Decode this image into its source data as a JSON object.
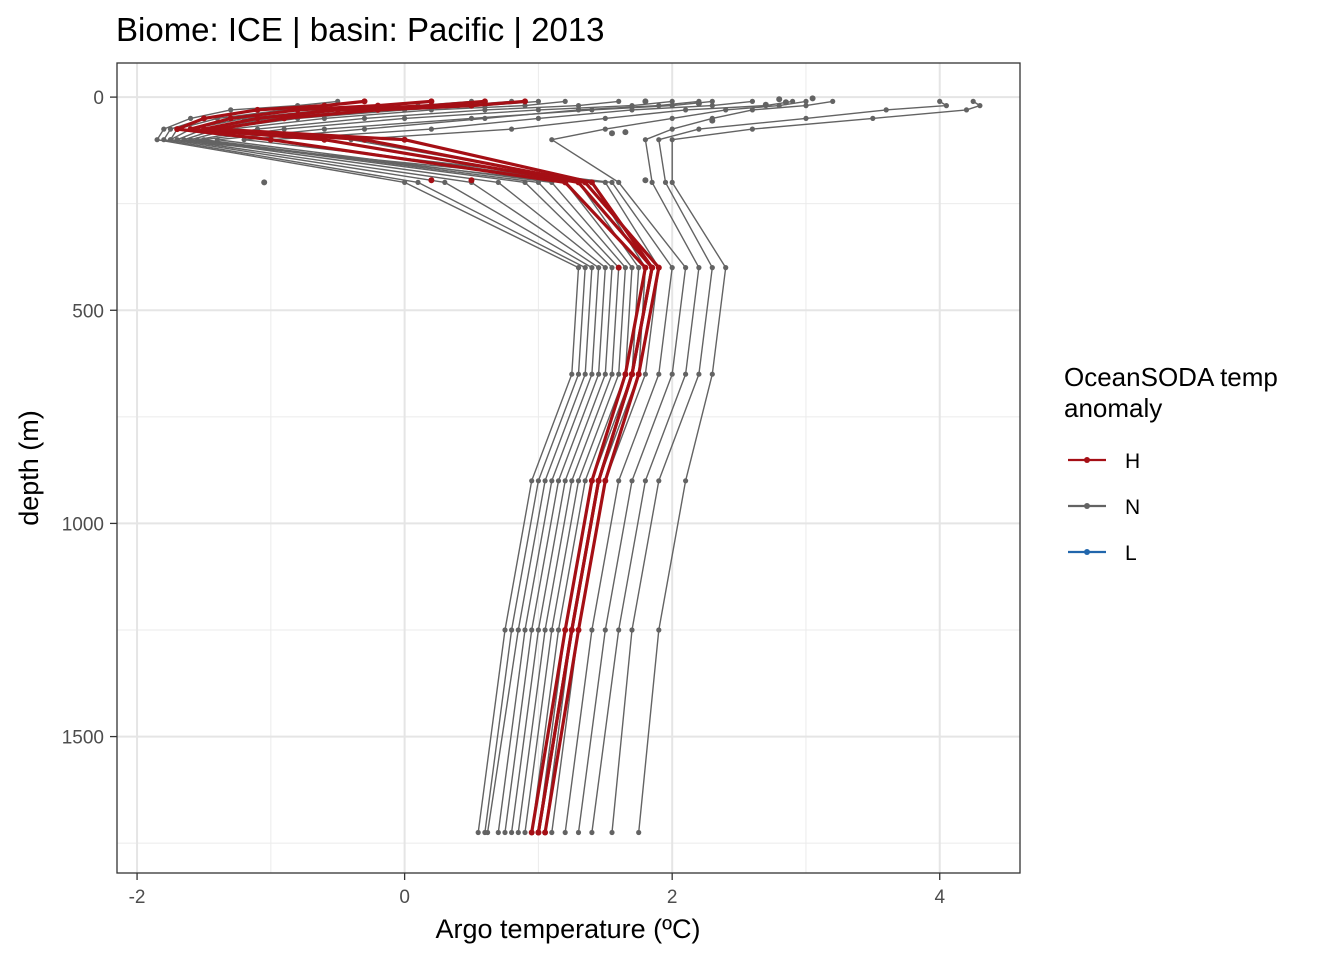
{
  "chart_data": {
    "type": "line",
    "title": "Biome: ICE | basin: Pacific  |  2013",
    "xlabel": "Argo temperature (ºC)",
    "ylabel": "depth (m)",
    "xlim": [
      -2.15,
      4.6
    ],
    "ylim": [
      -80,
      1820
    ],
    "y_reversed": true,
    "grid": true,
    "legend_position": "right",
    "x_ticks": [
      {
        "value": -2,
        "label": "-2"
      },
      {
        "value": 0,
        "label": "0"
      },
      {
        "value": 2,
        "label": "2"
      },
      {
        "value": 4,
        "label": "4"
      }
    ],
    "y_ticks": [
      {
        "value": 0,
        "label": "0"
      },
      {
        "value": 500,
        "label": "500"
      },
      {
        "value": 1000,
        "label": "1000"
      },
      {
        "value": 1500,
        "label": "1500"
      }
    ],
    "legend": {
      "title": "OceanSODA temp anomaly",
      "title_lines": [
        "OceanSODA temp",
        "anomaly"
      ],
      "entries": [
        {
          "label": "H",
          "color": "#A50F15"
        },
        {
          "label": "N",
          "color": "#636363"
        },
        {
          "label": "L",
          "color": "#2166AC"
        }
      ]
    },
    "depths": [
      10,
      20,
      30,
      50,
      75,
      100,
      200,
      400,
      650,
      900,
      1250,
      1725
    ],
    "series": [
      {
        "group": "N",
        "values": [
          -0.5,
          -0.8,
          -1.3,
          -1.6,
          -1.8,
          -1.85,
          0.0,
          1.3,
          1.25,
          0.95,
          0.75,
          0.55
        ]
      },
      {
        "group": "N",
        "values": [
          -0.3,
          -0.6,
          -1.1,
          -1.5,
          -1.75,
          -1.8,
          0.1,
          1.35,
          1.3,
          1.0,
          0.8,
          0.6
        ]
      },
      {
        "group": "N",
        "values": [
          0.5,
          0.1,
          -0.6,
          -1.2,
          -1.6,
          -1.75,
          0.3,
          1.4,
          1.35,
          1.05,
          0.85,
          0.62
        ]
      },
      {
        "group": "N",
        "values": [
          0.8,
          0.4,
          -0.3,
          -1.0,
          -1.5,
          -1.7,
          0.5,
          1.45,
          1.4,
          1.1,
          0.9,
          0.7
        ]
      },
      {
        "group": "N",
        "values": [
          1.2,
          0.9,
          0.2,
          -0.6,
          -1.3,
          -1.6,
          0.7,
          1.5,
          1.45,
          1.15,
          0.95,
          0.75
        ]
      },
      {
        "group": "N",
        "values": [
          1.6,
          1.3,
          0.6,
          -0.3,
          -1.1,
          -1.55,
          0.9,
          1.55,
          1.5,
          1.2,
          1.0,
          0.8
        ]
      },
      {
        "group": "N",
        "values": [
          2.0,
          1.7,
          1.0,
          0.0,
          -0.9,
          -1.5,
          1.0,
          1.6,
          1.55,
          1.25,
          1.05,
          0.85
        ]
      },
      {
        "group": "N",
        "values": [
          2.3,
          2.0,
          1.4,
          0.5,
          -0.6,
          -1.4,
          1.1,
          1.65,
          1.6,
          1.3,
          1.1,
          0.9
        ]
      },
      {
        "group": "N",
        "values": [
          1.0,
          0.6,
          0.0,
          -0.8,
          -1.4,
          -1.65,
          1.2,
          1.7,
          1.65,
          1.35,
          1.15,
          0.95
        ]
      },
      {
        "group": "N",
        "values": [
          2.6,
          2.3,
          1.7,
          1.0,
          0.2,
          -1.0,
          1.3,
          1.75,
          1.7,
          1.4,
          1.2,
          1.0
        ]
      },
      {
        "group": "N",
        "values": [
          2.9,
          2.7,
          2.1,
          1.5,
          0.8,
          -0.4,
          1.4,
          1.8,
          1.75,
          1.45,
          1.25,
          1.05
        ]
      },
      {
        "group": "N",
        "values": [
          0.2,
          -0.2,
          -0.9,
          -1.4,
          -1.7,
          -1.75,
          1.5,
          1.9,
          1.8,
          1.5,
          1.3,
          1.1
        ]
      },
      {
        "group": "N",
        "values": [
          2.2,
          1.9,
          1.3,
          0.6,
          -0.3,
          -1.2,
          1.55,
          2.0,
          1.9,
          1.6,
          1.4,
          1.2
        ]
      },
      {
        "group": "N",
        "values": [
          3.0,
          2.8,
          2.4,
          2.0,
          1.5,
          1.1,
          1.6,
          2.1,
          2.0,
          1.7,
          1.5,
          1.3
        ]
      },
      {
        "group": "N",
        "values": [
          3.2,
          3.0,
          2.6,
          2.3,
          2.0,
          1.8,
          1.85,
          2.2,
          2.1,
          1.8,
          1.6,
          1.4
        ]
      },
      {
        "group": "N",
        "values": [
          4.0,
          4.05,
          3.6,
          3.0,
          2.2,
          1.9,
          1.95,
          2.3,
          2.2,
          1.9,
          1.7,
          1.55
        ]
      },
      {
        "group": "N",
        "values": [
          4.25,
          4.3,
          4.2,
          3.5,
          2.6,
          2.0,
          2.0,
          2.4,
          2.3,
          2.1,
          1.9,
          1.75
        ]
      },
      {
        "group": "H",
        "values": [
          -0.3,
          -0.6,
          -1.1,
          -1.5,
          -1.7,
          -1.0,
          1.2,
          1.8,
          1.65,
          1.4,
          1.2,
          0.95
        ]
      },
      {
        "group": "H",
        "values": [
          0.2,
          -0.2,
          -0.8,
          -1.3,
          -1.6,
          -0.6,
          1.3,
          1.85,
          1.7,
          1.45,
          1.25,
          1.0
        ]
      },
      {
        "group": "H",
        "values": [
          0.6,
          0.2,
          -0.5,
          -1.1,
          -1.5,
          -0.3,
          1.35,
          1.9,
          1.75,
          1.5,
          1.3,
          1.05
        ]
      },
      {
        "group": "H",
        "values": [
          0.9,
          0.5,
          -0.2,
          -0.9,
          -1.4,
          0.0,
          1.4,
          1.85,
          1.7,
          1.45,
          1.25,
          1.0
        ]
      }
    ],
    "points": [
      {
        "group": "N",
        "x": -1.05,
        "y": 200
      },
      {
        "group": "N",
        "x": 2.8,
        "y": 5
      },
      {
        "group": "N",
        "x": 2.85,
        "y": 12
      },
      {
        "group": "N",
        "x": 3.05,
        "y": 3
      },
      {
        "group": "N",
        "x": 2.7,
        "y": 18
      },
      {
        "group": "N",
        "x": 2.3,
        "y": 55
      },
      {
        "group": "N",
        "x": 1.55,
        "y": 85
      },
      {
        "group": "N",
        "x": 1.65,
        "y": 82
      },
      {
        "group": "N",
        "x": 1.8,
        "y": 195
      },
      {
        "group": "N",
        "x": 2.2,
        "y": 15
      },
      {
        "group": "N",
        "x": 1.8,
        "y": 10
      },
      {
        "group": "H",
        "x": 0.2,
        "y": 195
      },
      {
        "group": "H",
        "x": 0.5,
        "y": 195
      },
      {
        "group": "H",
        "x": 1.6,
        "y": 400
      }
    ]
  }
}
